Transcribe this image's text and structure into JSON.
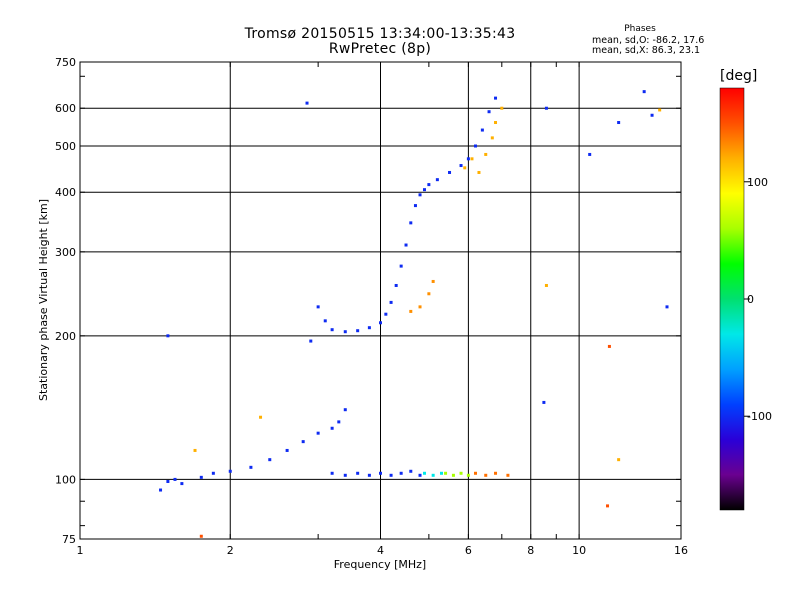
{
  "chart_data": {
    "type": "scatter",
    "title": "Tromsø 20150515 13:34:00-13:35:43",
    "subtitle": "RwPretec (8p)",
    "xlabel": "Frequency [MHz]",
    "ylabel": "Stationary phase Virtual Height [km]",
    "x_scale": "log",
    "y_scale": "log",
    "xlim": [
      1,
      16
    ],
    "ylim": [
      75,
      750
    ],
    "x_ticks": [
      1,
      2,
      4,
      6,
      8,
      10,
      16
    ],
    "x_tick_labels": [
      "1",
      "2",
      "4",
      "6",
      "8",
      "10",
      "16"
    ],
    "y_ticks": [
      75,
      100,
      200,
      300,
      400,
      500,
      600,
      750
    ],
    "y_tick_labels": [
      "75",
      "100",
      "200",
      "300",
      "400",
      "500",
      "600",
      "750"
    ],
    "grid": true,
    "stats": {
      "heading": "Phases",
      "line_o": "mean, sd,O: -86.2, 17.6",
      "line_x": "mean, sd,X: 86.3, 23.1"
    },
    "colorbar": {
      "label": "[deg]",
      "range": [
        -180,
        180
      ],
      "ticks": [
        -100,
        0,
        100
      ],
      "tick_labels": [
        "-100",
        "0",
        "100"
      ],
      "colors": [
        "#000000",
        "#6a0090",
        "#2a00d8",
        "#0040ff",
        "#00a0ff",
        "#00e8e8",
        "#00e070",
        "#00ff00",
        "#a8ff00",
        "#ffff00",
        "#ffb000",
        "#ff5000",
        "#ff0000"
      ]
    },
    "series": [
      {
        "points": [
          [
            1.45,
            95
          ],
          [
            1.5,
            99
          ],
          [
            1.55,
            100
          ],
          [
            1.6,
            98
          ],
          [
            1.75,
            101
          ],
          [
            1.85,
            103
          ],
          [
            2.0,
            104
          ],
          [
            2.2,
            106
          ],
          [
            2.4,
            110
          ],
          [
            2.6,
            115
          ],
          [
            2.8,
            120
          ],
          [
            3.0,
            125
          ],
          [
            3.2,
            128
          ],
          [
            3.3,
            132
          ],
          [
            3.4,
            140
          ]
        ],
        "phase": -100
      },
      {
        "points": [
          [
            3.2,
            103
          ],
          [
            3.4,
            102
          ],
          [
            3.6,
            103
          ],
          [
            3.8,
            102
          ],
          [
            4.0,
            103
          ],
          [
            4.2,
            102
          ],
          [
            4.4,
            103
          ],
          [
            4.6,
            104
          ],
          [
            4.8,
            102
          ]
        ],
        "phase": -100
      },
      {
        "points": [
          [
            4.9,
            103
          ],
          [
            5.1,
            102
          ],
          [
            5.3,
            103
          ]
        ],
        "phase": -30
      },
      {
        "points": [
          [
            5.4,
            103
          ],
          [
            5.6,
            102
          ],
          [
            5.8,
            103
          ],
          [
            6.0,
            102
          ]
        ],
        "phase": 60
      },
      {
        "points": [
          [
            6.2,
            103
          ],
          [
            6.5,
            102
          ],
          [
            6.8,
            103
          ],
          [
            7.2,
            102
          ]
        ],
        "phase": 140
      },
      {
        "points": [
          [
            3.0,
            230
          ],
          [
            3.1,
            215
          ],
          [
            3.2,
            206
          ],
          [
            3.4,
            204
          ],
          [
            3.6,
            205
          ],
          [
            3.8,
            208
          ],
          [
            4.0,
            213
          ],
          [
            4.1,
            222
          ],
          [
            4.2,
            235
          ],
          [
            4.3,
            255
          ],
          [
            4.4,
            280
          ],
          [
            4.5,
            310
          ],
          [
            4.6,
            345
          ],
          [
            4.7,
            375
          ],
          [
            4.8,
            395
          ],
          [
            4.9,
            405
          ],
          [
            5.0,
            415
          ],
          [
            5.2,
            425
          ],
          [
            5.5,
            440
          ],
          [
            5.8,
            455
          ],
          [
            6.0,
            470
          ],
          [
            6.2,
            500
          ],
          [
            6.4,
            540
          ],
          [
            6.6,
            590
          ],
          [
            6.8,
            630
          ]
        ],
        "phase": -100
      },
      {
        "points": [
          [
            4.6,
            225
          ],
          [
            4.8,
            230
          ],
          [
            5.0,
            245
          ],
          [
            5.1,
            260
          ]
        ],
        "phase": 130
      },
      {
        "points": [
          [
            5.9,
            450
          ],
          [
            6.1,
            470
          ],
          [
            6.3,
            440
          ],
          [
            6.5,
            480
          ],
          [
            6.7,
            520
          ],
          [
            6.8,
            560
          ],
          [
            7.0,
            600
          ]
        ],
        "phase": 120
      },
      {
        "points": [
          [
            1.5,
            200
          ],
          [
            2.85,
            615
          ],
          [
            2.9,
            195
          ],
          [
            8.5,
            145
          ],
          [
            8.6,
            600
          ],
          [
            10.5,
            480
          ],
          [
            12.0,
            560
          ],
          [
            13.5,
            650
          ],
          [
            14.0,
            580
          ],
          [
            15.0,
            230
          ]
        ],
        "phase": -100
      },
      {
        "points": [
          [
            1.7,
            115
          ],
          [
            2.3,
            135
          ],
          [
            8.6,
            255
          ],
          [
            12.0,
            110
          ],
          [
            14.5,
            595
          ]
        ],
        "phase": 120
      },
      {
        "points": [
          [
            11.5,
            190
          ],
          [
            11.4,
            88
          ],
          [
            1.75,
            76
          ]
        ],
        "phase": 150
      }
    ]
  }
}
